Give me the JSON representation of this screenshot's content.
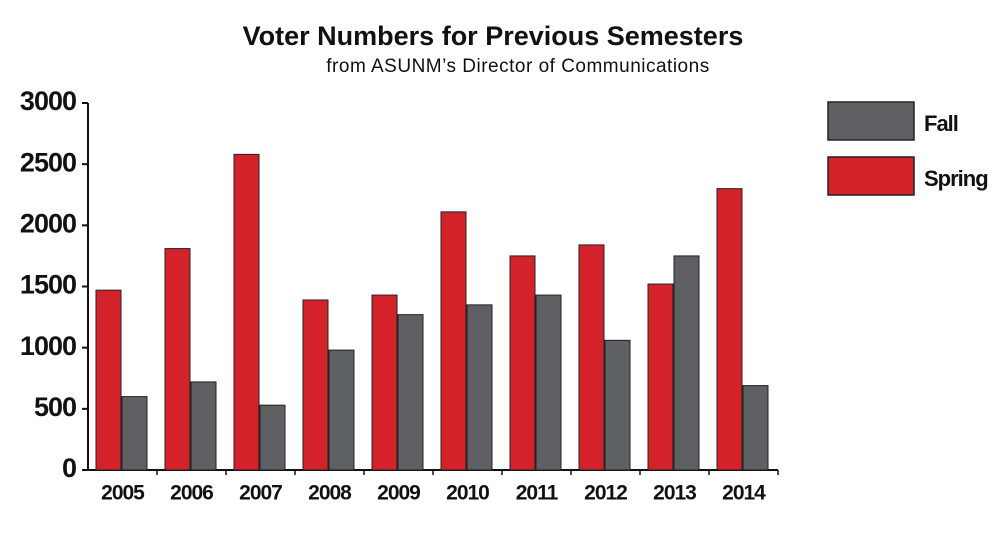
{
  "chart_data": {
    "type": "bar",
    "title": "Voter Numbers for Previous Semesters",
    "subtitle": "from ASUNM’s Director of Communications",
    "categories": [
      "2005",
      "2006",
      "2007",
      "2008",
      "2009",
      "2010",
      "2011",
      "2012",
      "2013",
      "2014"
    ],
    "series": [
      {
        "name": "Spring",
        "color": "#d32229",
        "values": [
          1470,
          1810,
          2580,
          1390,
          1430,
          2110,
          1750,
          1840,
          1520,
          2300
        ]
      },
      {
        "name": "Fall",
        "color": "#5f6063",
        "values": [
          600,
          720,
          530,
          980,
          1270,
          1350,
          1430,
          1060,
          1750,
          690
        ]
      }
    ],
    "ylim": [
      0,
      3000
    ],
    "yticks": [
      0,
      500,
      1000,
      1500,
      2000,
      2500,
      3000
    ]
  }
}
